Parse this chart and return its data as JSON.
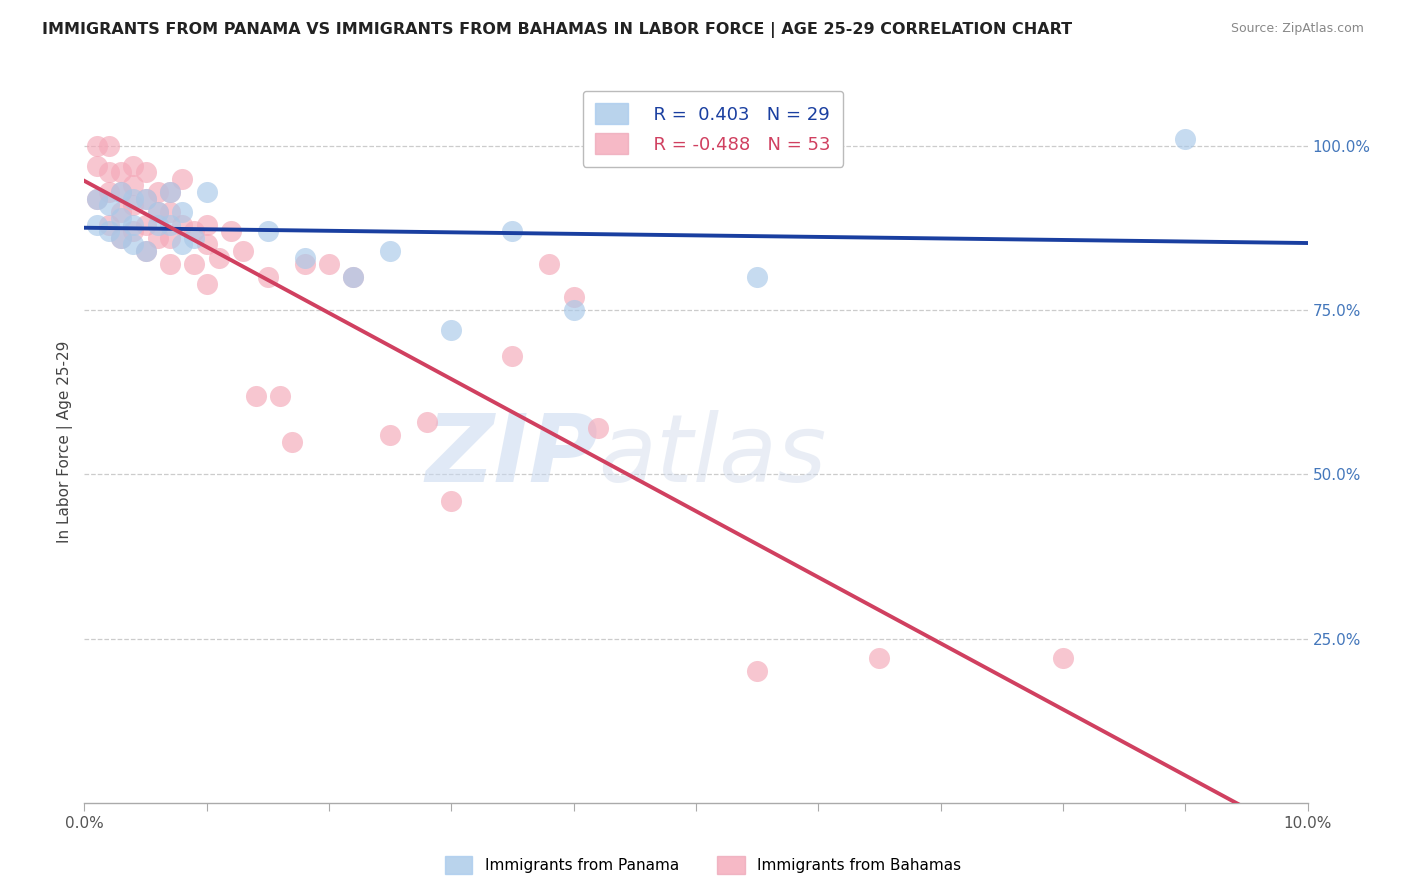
{
  "title": "IMMIGRANTS FROM PANAMA VS IMMIGRANTS FROM BAHAMAS IN LABOR FORCE | AGE 25-29 CORRELATION CHART",
  "source": "Source: ZipAtlas.com",
  "ylabel": "In Labor Force | Age 25-29",
  "xlim": [
    0.0,
    0.1
  ],
  "ylim": [
    0.0,
    1.1
  ],
  "panama_R": 0.403,
  "panama_N": 29,
  "bahamas_R": -0.488,
  "bahamas_N": 53,
  "panama_color": "#a8c8e8",
  "bahamas_color": "#f4a8b8",
  "trend_panama_color": "#1a3fa0",
  "trend_bahamas_color": "#d04060",
  "panama_x": [
    0.001,
    0.001,
    0.002,
    0.002,
    0.003,
    0.003,
    0.003,
    0.004,
    0.004,
    0.004,
    0.005,
    0.005,
    0.006,
    0.006,
    0.007,
    0.007,
    0.008,
    0.008,
    0.009,
    0.01,
    0.015,
    0.018,
    0.022,
    0.025,
    0.03,
    0.035,
    0.04,
    0.055,
    0.09
  ],
  "panama_y": [
    0.92,
    0.88,
    0.91,
    0.87,
    0.93,
    0.89,
    0.86,
    0.92,
    0.88,
    0.85,
    0.92,
    0.84,
    0.9,
    0.88,
    0.93,
    0.88,
    0.9,
    0.85,
    0.86,
    0.93,
    0.87,
    0.83,
    0.8,
    0.84,
    0.72,
    0.87,
    0.75,
    0.8,
    1.01
  ],
  "bahamas_x": [
    0.001,
    0.001,
    0.001,
    0.002,
    0.002,
    0.002,
    0.002,
    0.003,
    0.003,
    0.003,
    0.003,
    0.004,
    0.004,
    0.004,
    0.004,
    0.005,
    0.005,
    0.005,
    0.005,
    0.006,
    0.006,
    0.006,
    0.007,
    0.007,
    0.007,
    0.007,
    0.008,
    0.008,
    0.009,
    0.009,
    0.01,
    0.01,
    0.01,
    0.011,
    0.012,
    0.013,
    0.014,
    0.015,
    0.016,
    0.017,
    0.018,
    0.02,
    0.022,
    0.025,
    0.028,
    0.03,
    0.035,
    0.038,
    0.04,
    0.042,
    0.055,
    0.065,
    0.08
  ],
  "bahamas_y": [
    1.0,
    0.97,
    0.92,
    1.0,
    0.96,
    0.93,
    0.88,
    0.96,
    0.93,
    0.9,
    0.86,
    0.97,
    0.94,
    0.91,
    0.87,
    0.96,
    0.92,
    0.88,
    0.84,
    0.93,
    0.9,
    0.86,
    0.93,
    0.9,
    0.86,
    0.82,
    0.95,
    0.88,
    0.87,
    0.82,
    0.88,
    0.85,
    0.79,
    0.83,
    0.87,
    0.84,
    0.62,
    0.8,
    0.62,
    0.55,
    0.82,
    0.82,
    0.8,
    0.56,
    0.58,
    0.46,
    0.68,
    0.82,
    0.77,
    0.57,
    0.2,
    0.22,
    0.22
  ],
  "watermark_zip": "ZIP",
  "watermark_atlas": "atlas"
}
